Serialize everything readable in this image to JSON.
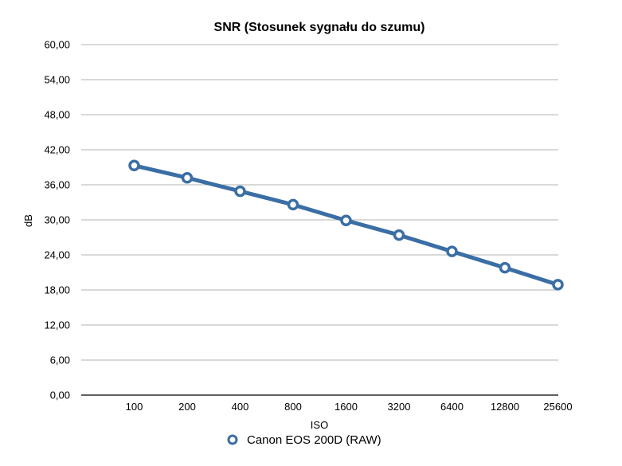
{
  "chart_data": {
    "type": "line",
    "title": "SNR (Stosunek sygnału do szumu)",
    "xlabel": "ISO",
    "ylabel": "dB",
    "categories": [
      "100",
      "200",
      "400",
      "800",
      "1600",
      "3200",
      "6400",
      "12800",
      "25600"
    ],
    "series": [
      {
        "name": "Canon EOS 200D (RAW)",
        "color": "#3a6ea5",
        "values": [
          39.3,
          37.2,
          34.9,
          32.6,
          29.9,
          27.4,
          24.6,
          21.8,
          18.9
        ]
      }
    ],
    "ylim": [
      0,
      60
    ],
    "yticks": [
      "0,00",
      "6,00",
      "12,00",
      "18,00",
      "24,00",
      "30,00",
      "36,00",
      "42,00",
      "48,00",
      "54,00",
      "60,00"
    ],
    "grid": true,
    "legend_position": "bottom-center"
  }
}
